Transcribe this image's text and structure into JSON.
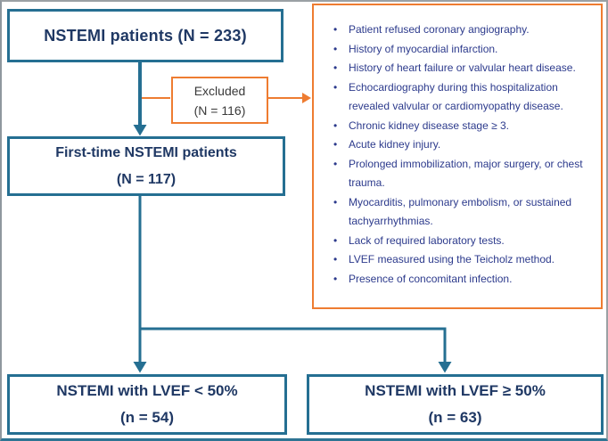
{
  "flowchart": {
    "total_box": {
      "label": "NSTEMI patients (N = 233)"
    },
    "excluded_box": {
      "line1": "Excluded",
      "line2": "(N = 116)"
    },
    "exclusion_criteria": {
      "items": [
        "Patient refused coronary angiography.",
        "History of myocardial infarction.",
        "History of heart failure or valvular heart disease.",
        "Echocardiography during this hospitalization revealed valvular or cardiomyopathy disease.",
        "Chronic kidney disease stage ≥ 3.",
        "Acute kidney injury.",
        "Prolonged immobilization, major surgery, or chest trauma.",
        "Myocarditis, pulmonary embolism, or sustained tachyarrhythmias.",
        "Lack of required laboratory tests.",
        "LVEF measured using the Teicholz method.",
        "Presence of concomitant infection."
      ]
    },
    "first_time_box": {
      "line1": "First-time NSTEMI patients",
      "line2": "(N = 117)"
    },
    "lvef_low_box": {
      "line1": "NSTEMI with LVEF < 50%",
      "line2": "(n = 54)"
    },
    "lvef_high_box": {
      "line1": "NSTEMI with LVEF ≥ 50%",
      "line2": "(n = 63)"
    },
    "colors": {
      "box_border_teal": "#256f92",
      "orange": "#ee7c31",
      "heading_navy": "#1f3864",
      "bullet_navy": "#2c3a8c",
      "excluded_text_gray": "#3a3a3a"
    }
  }
}
